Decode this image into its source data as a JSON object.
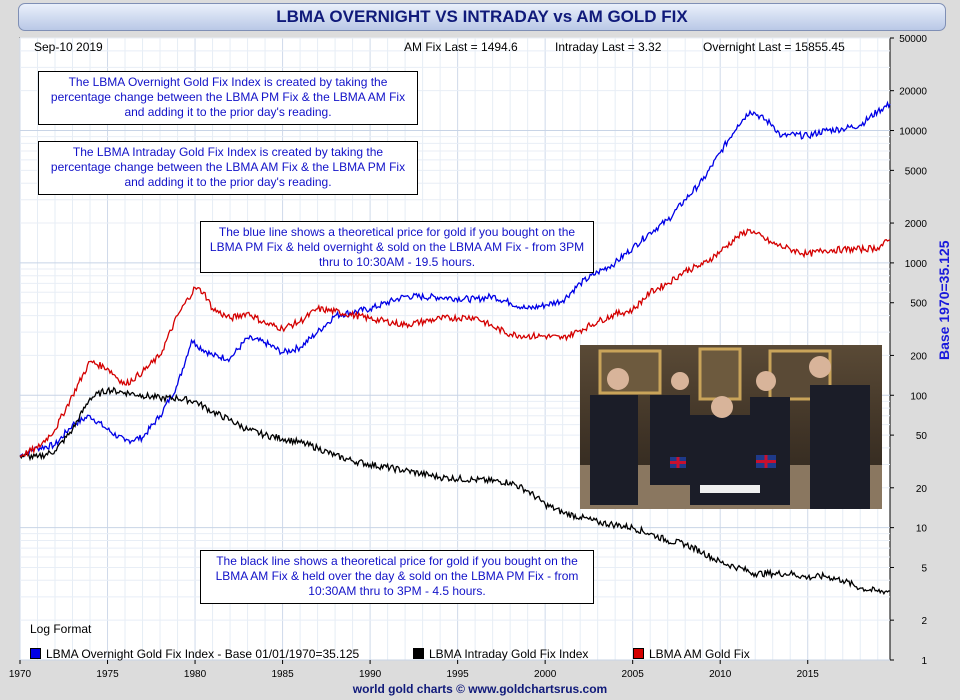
{
  "header": {
    "title": "LBMA OVERNIGHT VS INTRADAY vs AM GOLD FIX",
    "date": "Sep-10  2019",
    "am_fix_last": "AM Fix Last = 1494.6",
    "intraday_last": "Intraday Last = 3.32",
    "overnight_last": "Overnight Last = 15855.45"
  },
  "notes": {
    "overnight_desc": "The LBMA Overnight Gold Fix Index is created by taking the percentage change between the LBMA PM Fix & the LBMA AM Fix and adding it to the prior day's reading.",
    "intraday_desc": "The LBMA Intraday Gold Fix Index is created by taking the percentage change between the LBMA AM Fix & the LBMA PM Fix and adding it to the prior day's reading.",
    "blue_line": "The blue line shows a theoretical price for gold if you bought on the LBMA PM Fix & held overnight & sold on the LBMA AM Fix - from 3PM thru to 10:30AM - 19.5 hours.",
    "black_line": "The black line shows a theoretical price for gold if you bought on the LBMA AM Fix & held over the day & sold on the LBMA PM Fix - from 10:30AM thru to 3PM - 4.5 hours."
  },
  "log_format": "Log Format",
  "footer": "world gold charts © www.goldchartsrus.com",
  "y_axis_right_label": "Base 1970=35.125",
  "colors": {
    "overnight": "#0000e6",
    "intraday": "#000000",
    "amfix": "#d40000"
  },
  "chart_data": {
    "type": "line",
    "title": "LBMA OVERNIGHT VS INTRADAY vs AM GOLD FIX",
    "y_scale": "log",
    "ylim": [
      1,
      50000
    ],
    "xlim": [
      1970,
      2019.7
    ],
    "x_ticks": [
      1970,
      1975,
      1980,
      1985,
      1990,
      1995,
      2000,
      2005,
      2010,
      2015
    ],
    "y_ticks": [
      1,
      2,
      5,
      10,
      20,
      50,
      100,
      200,
      500,
      1000,
      2000,
      5000,
      10000,
      20000,
      50000
    ],
    "series": [
      {
        "name": "LBMA Overnight Gold Fix Index - Base 01/01/1970=35.125",
        "color_key": "overnight",
        "x": [
          1970,
          1971,
          1972,
          1973,
          1974,
          1975,
          1976,
          1977,
          1978,
          1979,
          1979.8,
          1980.1,
          1981,
          1982,
          1983,
          1984,
          1985,
          1986,
          1987,
          1988,
          1990,
          1992,
          1994,
          1996,
          1997,
          1998,
          1999,
          2000,
          2001,
          2002,
          2003,
          2004,
          2005,
          2006,
          2007,
          2008,
          2009,
          2010,
          2011,
          2011.7,
          2012,
          2013,
          2013.5,
          2014,
          2015,
          2016,
          2017,
          2018,
          2019,
          2019.7
        ],
        "values": [
          35,
          40,
          42,
          60,
          70,
          55,
          45,
          48,
          70,
          120,
          260,
          240,
          200,
          190,
          270,
          250,
          210,
          230,
          300,
          400,
          450,
          560,
          550,
          530,
          560,
          500,
          450,
          480,
          520,
          700,
          850,
          1000,
          1300,
          1700,
          2100,
          3000,
          4200,
          6800,
          11000,
          14000,
          13500,
          11000,
          9000,
          9300,
          9100,
          10000,
          10300,
          11000,
          14000,
          15855
        ]
      },
      {
        "name": "LBMA Intraday Gold Fix Index",
        "color_key": "intraday",
        "x": [
          1970,
          1971,
          1972,
          1973,
          1974,
          1975,
          1976,
          1977,
          1978,
          1979,
          1980,
          1981,
          1982,
          1983,
          1984,
          1985,
          1986,
          1987,
          1988,
          1989,
          1990,
          1992,
          1994,
          1996,
          1998,
          1999,
          2000,
          2001,
          2002,
          2003,
          2004,
          2005,
          2006,
          2007,
          2008,
          2009,
          2010,
          2011,
          2012,
          2013,
          2014,
          2015,
          2016,
          2017,
          2018,
          2019,
          2019.7
        ],
        "values": [
          35,
          34,
          38,
          55,
          95,
          110,
          105,
          100,
          95,
          95,
          90,
          75,
          65,
          55,
          50,
          47,
          44,
          40,
          35,
          32,
          30,
          27,
          24,
          23,
          22,
          19,
          15,
          13,
          12,
          11,
          10.5,
          10,
          9,
          8,
          7.5,
          6.5,
          5.5,
          5,
          4.5,
          4.5,
          4.5,
          4.2,
          4.3,
          4,
          3.5,
          3.3,
          3.32
        ]
      },
      {
        "name": "LBMA AM Gold Fix",
        "color_key": "amfix",
        "x": [
          1970,
          1971,
          1972,
          1973,
          1974,
          1975,
          1976,
          1977,
          1978,
          1979,
          1980,
          1980.5,
          1981,
          1982,
          1983,
          1984,
          1985,
          1986,
          1987,
          1988,
          1990,
          1992,
          1994,
          1996,
          1997,
          1998,
          1999,
          2000,
          2001,
          2002,
          2003,
          2004,
          2005,
          2006,
          2007,
          2008,
          2009,
          2010,
          2011,
          2011.7,
          2012,
          2013,
          2014,
          2015,
          2016,
          2017,
          2018,
          2019,
          2019.7
        ],
        "values": [
          35,
          40,
          55,
          100,
          180,
          160,
          120,
          150,
          200,
          400,
          650,
          600,
          450,
          380,
          420,
          350,
          320,
          360,
          450,
          430,
          380,
          340,
          380,
          390,
          330,
          290,
          280,
          280,
          270,
          310,
          360,
          410,
          440,
          600,
          700,
          870,
          970,
          1220,
          1580,
          1780,
          1670,
          1400,
          1270,
          1160,
          1250,
          1260,
          1270,
          1300,
          1494.6
        ]
      }
    ]
  }
}
